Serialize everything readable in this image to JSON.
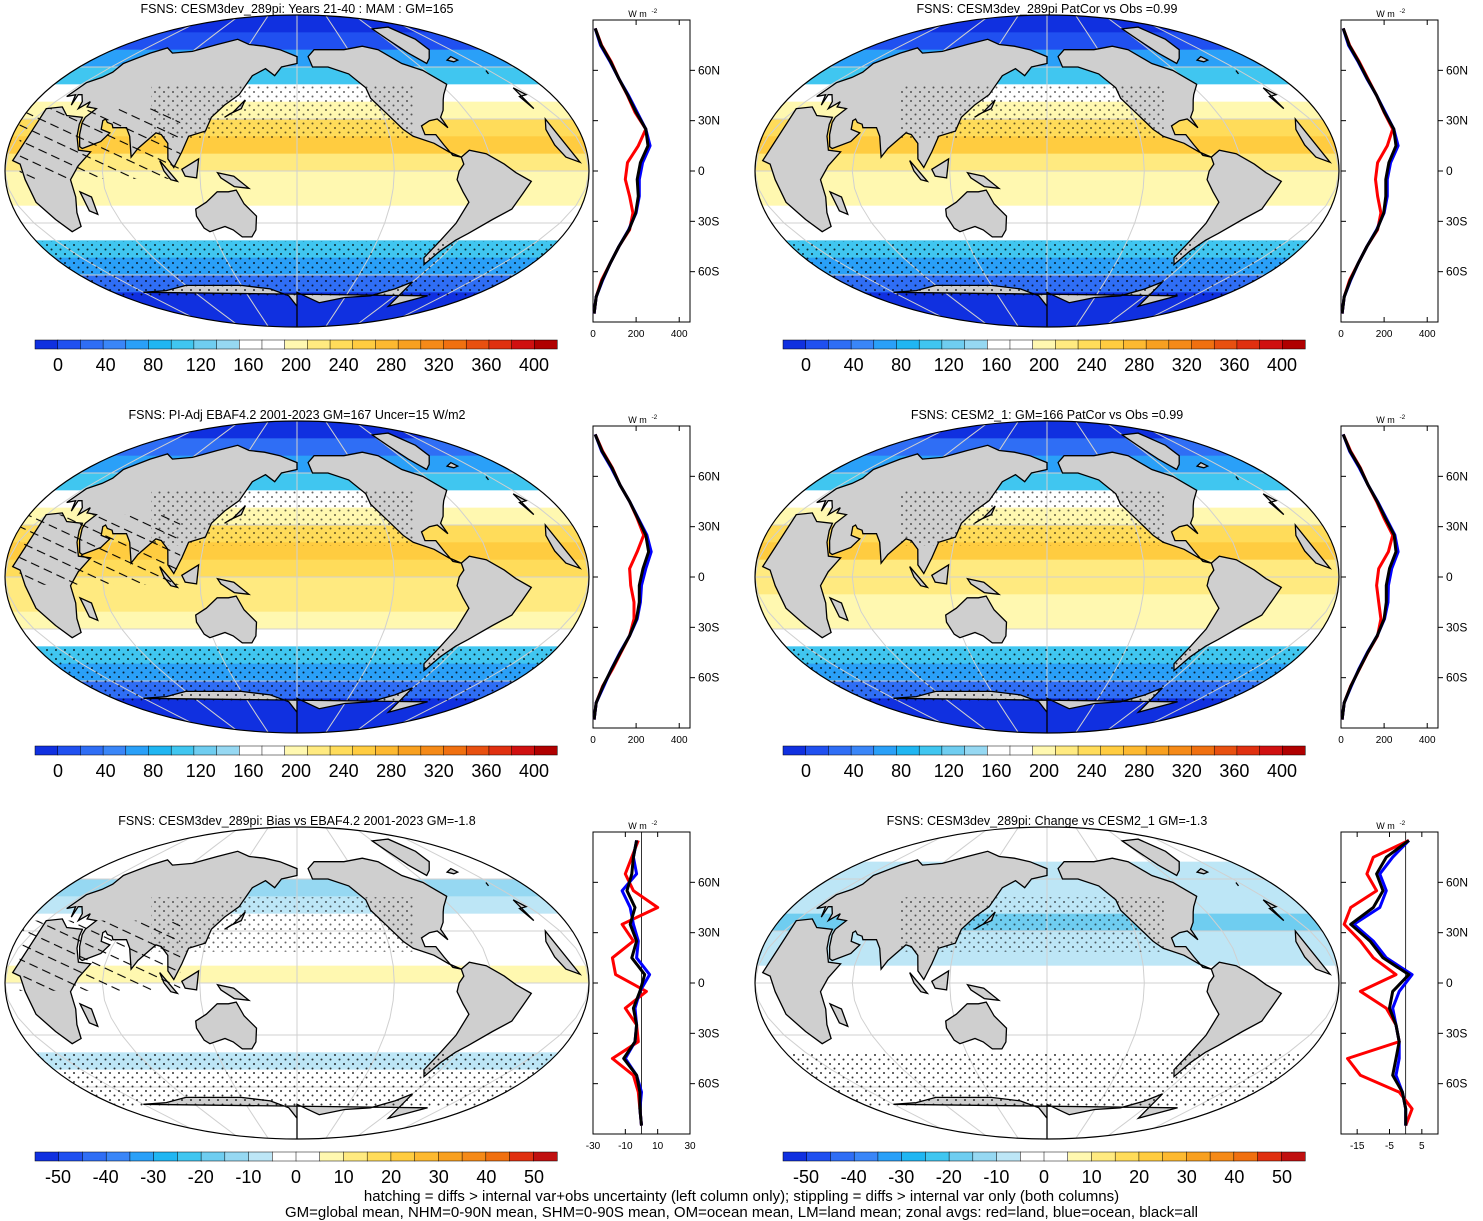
{
  "figure": {
    "footer_lines": [
      "hatching = diffs > internal var+obs uncertainty (left column only); stippling = diffs > internal var only (both columns)",
      "GM=global mean, NHM=0-90N mean, SHM=0-90S mean, OM=ocean mean, LM=land mean; zonal avgs: red=land, blue=ocean, black=all"
    ],
    "zonal_unit_label": "W m",
    "zonal_unit_exp": "-2",
    "lat_labels": [
      "60N",
      "30N",
      "0",
      "30S",
      "60S"
    ],
    "colors": {
      "land": "#cfcfcf",
      "coast": "#000000",
      "grid": "#d0d0d0",
      "line_land": "#ff0000",
      "line_ocean": "#0000ff",
      "line_all": "#000000"
    }
  },
  "chart_data": [
    {
      "type": "heatmap",
      "kind": "abs",
      "title": "FSNS: CESM3dev_289pi: Years 21-40 : MAM : GM=165",
      "colorbar_ticks": [
        "0",
        "40",
        "80",
        "120",
        "160",
        "200",
        "240",
        "280",
        "320",
        "360",
        "400"
      ],
      "stipple": true,
      "hatch": true,
      "zonal": {
        "xticks": [
          "0",
          "200",
          "400"
        ],
        "xlim": [
          0,
          450
        ],
        "lat": [
          85,
          75,
          65,
          55,
          45,
          35,
          25,
          15,
          5,
          -5,
          -15,
          -25,
          -35,
          -45,
          -55,
          -65,
          -75,
          -85
        ],
        "land": [
          10,
          40,
          85,
          120,
          160,
          195,
          245,
          210,
          160,
          150,
          170,
          185,
          170,
          120,
          80,
          40,
          15,
          5
        ],
        "ocean": [
          10,
          35,
          80,
          120,
          165,
          205,
          245,
          265,
          230,
          215,
          215,
          200,
          165,
          120,
          80,
          45,
          15,
          5
        ],
        "all": [
          10,
          38,
          82,
          120,
          162,
          200,
          245,
          255,
          220,
          205,
          210,
          198,
          167,
          120,
          80,
          43,
          15,
          5
        ]
      }
    },
    {
      "type": "heatmap",
      "kind": "abs",
      "title": "FSNS: CESM3dev_289pi PatCor vs Obs =0.99",
      "colorbar_ticks": [
        "0",
        "40",
        "80",
        "120",
        "160",
        "200",
        "240",
        "280",
        "320",
        "360",
        "400"
      ],
      "stipple": true,
      "hatch": false,
      "zonal": {
        "xticks": [
          "0",
          "200",
          "400"
        ],
        "xlim": [
          0,
          450
        ],
        "lat": [
          85,
          75,
          65,
          55,
          45,
          35,
          25,
          15,
          5,
          -5,
          -15,
          -25,
          -35,
          -45,
          -55,
          -65,
          -75,
          -85
        ],
        "land": [
          10,
          40,
          85,
          125,
          165,
          200,
          240,
          215,
          170,
          160,
          170,
          185,
          170,
          120,
          80,
          40,
          15,
          5
        ],
        "ocean": [
          10,
          35,
          80,
          120,
          165,
          205,
          245,
          265,
          230,
          215,
          215,
          200,
          165,
          120,
          80,
          45,
          15,
          5
        ],
        "all": [
          10,
          38,
          82,
          122,
          165,
          202,
          245,
          255,
          222,
          208,
          208,
          198,
          167,
          120,
          80,
          43,
          15,
          5
        ]
      }
    },
    {
      "type": "heatmap",
      "kind": "abs",
      "title": "FSNS: PI-Adj EBAF4.2 2001-2023 GM=167 Uncer=15 W/m2",
      "colorbar_ticks": [
        "0",
        "40",
        "80",
        "120",
        "160",
        "200",
        "240",
        "280",
        "320",
        "360",
        "400"
      ],
      "stipple": true,
      "hatch": true,
      "zonal": {
        "xticks": [
          "0",
          "200",
          "400"
        ],
        "xlim": [
          0,
          450
        ],
        "lat": [
          85,
          75,
          65,
          55,
          45,
          35,
          25,
          15,
          5,
          -5,
          -15,
          -25,
          -35,
          -45,
          -55,
          -65,
          -75,
          -85
        ],
        "land": [
          10,
          45,
          90,
          125,
          170,
          205,
          235,
          205,
          170,
          175,
          190,
          190,
          170,
          130,
          90,
          45,
          15,
          5
        ],
        "ocean": [
          10,
          40,
          85,
          125,
          170,
          210,
          250,
          270,
          245,
          225,
          220,
          205,
          170,
          125,
          85,
          50,
          15,
          5
        ],
        "all": [
          10,
          42,
          88,
          125,
          170,
          208,
          245,
          258,
          232,
          215,
          215,
          202,
          170,
          127,
          86,
          47,
          15,
          5
        ]
      }
    },
    {
      "type": "heatmap",
      "kind": "abs",
      "title": "FSNS: CESM2_1: GM=166 PatCor vs Obs =0.99",
      "colorbar_ticks": [
        "0",
        "40",
        "80",
        "120",
        "160",
        "200",
        "240",
        "280",
        "320",
        "360",
        "400"
      ],
      "stipple": true,
      "hatch": false,
      "zonal": {
        "xticks": [
          "0",
          "200",
          "400"
        ],
        "xlim": [
          0,
          450
        ],
        "lat": [
          85,
          75,
          65,
          55,
          45,
          35,
          25,
          15,
          5,
          -5,
          -15,
          -25,
          -35,
          -45,
          -55,
          -65,
          -75,
          -85
        ],
        "land": [
          10,
          45,
          90,
          125,
          165,
          200,
          240,
          220,
          175,
          165,
          175,
          185,
          170,
          125,
          85,
          45,
          15,
          5
        ],
        "ocean": [
          10,
          40,
          85,
          125,
          170,
          210,
          250,
          265,
          235,
          220,
          218,
          202,
          168,
          122,
          82,
          48,
          15,
          5
        ],
        "all": [
          10,
          42,
          88,
          125,
          168,
          206,
          247,
          255,
          225,
          210,
          210,
          200,
          168,
          124,
          84,
          46,
          15,
          5
        ]
      }
    },
    {
      "type": "heatmap",
      "kind": "diff",
      "title": "FSNS: CESM3dev_289pi: Bias vs EBAF4.2 2001-2023 GM=-1.8",
      "colorbar_ticks": [
        "-50",
        "-40",
        "-30",
        "-20",
        "-10",
        "0",
        "10",
        "20",
        "30",
        "40",
        "50"
      ],
      "stipple": true,
      "hatch": true,
      "zonal": {
        "xticks": [
          "-30",
          "-10",
          "10",
          "30"
        ],
        "xlim": [
          -30,
          30
        ],
        "lat": [
          85,
          75,
          65,
          55,
          45,
          35,
          25,
          15,
          5,
          -5,
          -15,
          -25,
          -35,
          -45,
          -55,
          -65,
          -75,
          -85
        ],
        "land": [
          -2,
          -6,
          -10,
          -5,
          10,
          -12,
          -5,
          -18,
          -16,
          3,
          -10,
          -3,
          -2,
          -18,
          -5,
          -2,
          -1,
          0
        ],
        "ocean": [
          -3,
          -5,
          -3,
          -12,
          -7,
          -5,
          -2,
          -3,
          5,
          -1,
          -4,
          -3,
          -4,
          -10,
          -3,
          0,
          -1,
          0
        ],
        "all": [
          -3,
          -5,
          -6,
          -9,
          -4,
          -7,
          -3,
          -6,
          2,
          -1,
          -5,
          -3,
          -4,
          -11,
          -3,
          -1,
          -1,
          0
        ]
      }
    },
    {
      "type": "heatmap",
      "kind": "diff",
      "title": "FSNS: CESM3dev_289pi: Change vs CESM2_1 GM=-1.3",
      "colorbar_ticks": [
        "-50",
        "-40",
        "-30",
        "-20",
        "-10",
        "0",
        "10",
        "20",
        "30",
        "40",
        "50"
      ],
      "stipple": true,
      "hatch": false,
      "zonal": {
        "xticks": [
          "-15",
          "-5",
          "5"
        ],
        "xlim": [
          -20,
          10
        ],
        "lat": [
          85,
          75,
          65,
          55,
          45,
          35,
          25,
          15,
          5,
          -5,
          -15,
          -25,
          -35,
          -45,
          -55,
          -65,
          -75,
          -85
        ],
        "land": [
          1,
          -10,
          -12,
          -9,
          -17,
          -19,
          -14,
          -10,
          -3,
          -14,
          -6,
          -3,
          -2,
          -18,
          -14,
          -2,
          2,
          0
        ],
        "ocean": [
          1,
          -4,
          -8,
          -6,
          -8,
          -16,
          -10,
          -6,
          2,
          -2,
          -4,
          -3,
          -2,
          -2,
          -3,
          -1,
          0,
          0
        ],
        "all": [
          1,
          -6,
          -9,
          -7,
          -10,
          -17,
          -11,
          -7,
          1,
          -4,
          -5,
          -3,
          -2,
          -3,
          -4,
          -1,
          0,
          0
        ]
      }
    }
  ]
}
